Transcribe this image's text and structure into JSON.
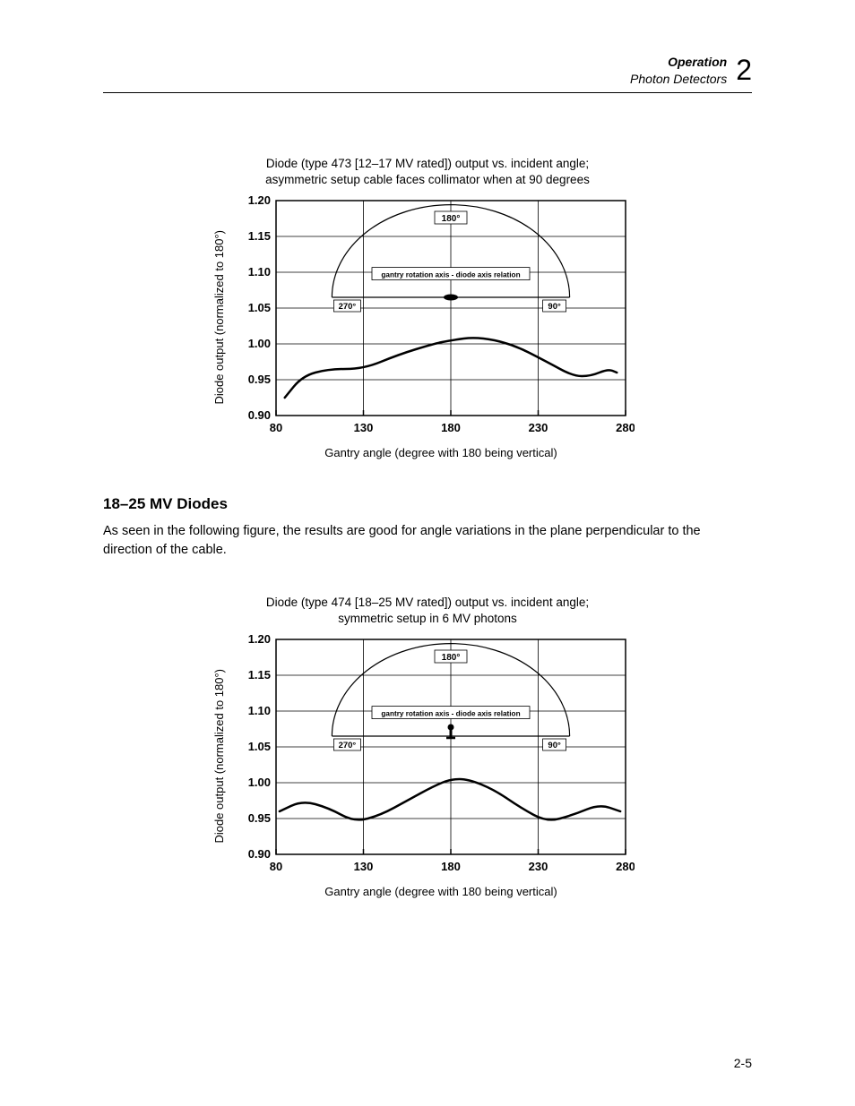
{
  "header": {
    "line1": "Operation",
    "line2": "Photon Detectors",
    "chapter_num": "2"
  },
  "chart1": {
    "type": "line",
    "title_line1": "Diode (type 473 [12–17 MV rated]) output vs. incident angle;",
    "title_line2": "asymmetric setup cable faces collimator when at 90 degrees",
    "ylabel": "Diode output (normalized to 180°)",
    "xlabel": "Gantry angle (degree with 180 being vertical)",
    "xlim": [
      80,
      280
    ],
    "ylim": [
      0.9,
      1.2
    ],
    "xticks": [
      80,
      130,
      180,
      230,
      280
    ],
    "yticks": [
      "0.90",
      "0.95",
      "1.00",
      "1.05",
      "1.10",
      "1.15",
      "1.20"
    ],
    "tick_fontsize": 13,
    "tick_fontweight": "bold",
    "axis_color": "#000000",
    "grid_color": "#000000",
    "background_color": "#ffffff",
    "line_color": "#000000",
    "line_width": 2.5,
    "arc_color": "#000000",
    "arc_width": 1.2,
    "box_border": "#000000",
    "annotation_box_text": "gantry rotation axis - diode axis relation",
    "annotation_labels": {
      "top": "180°",
      "left": "270°",
      "right": "90°"
    },
    "data_points": [
      {
        "x": 85,
        "y": 0.925
      },
      {
        "x": 95,
        "y": 0.955
      },
      {
        "x": 110,
        "y": 0.965
      },
      {
        "x": 130,
        "y": 0.965
      },
      {
        "x": 150,
        "y": 0.985
      },
      {
        "x": 170,
        "y": 1.0
      },
      {
        "x": 180,
        "y": 1.005
      },
      {
        "x": 195,
        "y": 1.01
      },
      {
        "x": 215,
        "y": 1.0
      },
      {
        "x": 235,
        "y": 0.975
      },
      {
        "x": 250,
        "y": 0.955
      },
      {
        "x": 260,
        "y": 0.955
      },
      {
        "x": 270,
        "y": 0.965
      },
      {
        "x": 275,
        "y": 0.96
      }
    ]
  },
  "section": {
    "heading": "18–25 MV Diodes",
    "body": "As seen in the following figure, the results are good for angle variations in the plane perpendicular to the direction of the cable."
  },
  "chart2": {
    "type": "line",
    "title_line1": "Diode (type 474 [18–25 MV rated]) output vs. incident angle;",
    "title_line2": "symmetric setup in 6 MV photons",
    "ylabel": "Diode output (normalized to 180°)",
    "xlabel": "Gantry angle (degree with 180 being vertical)",
    "xlim": [
      80,
      280
    ],
    "ylim": [
      0.9,
      1.2
    ],
    "xticks": [
      80,
      130,
      180,
      230,
      280
    ],
    "yticks": [
      "0.90",
      "0.95",
      "1.00",
      "1.05",
      "1.10",
      "1.15",
      "1.20"
    ],
    "tick_fontsize": 13,
    "tick_fontweight": "bold",
    "axis_color": "#000000",
    "grid_color": "#000000",
    "background_color": "#ffffff",
    "line_color": "#000000",
    "line_width": 2.5,
    "arc_color": "#000000",
    "arc_width": 1.2,
    "box_border": "#000000",
    "annotation_box_text": "gantry rotation axis - diode axis relation",
    "annotation_labels": {
      "top": "180°",
      "left": "270°",
      "right": "90°"
    },
    "data_points": [
      {
        "x": 82,
        "y": 0.96
      },
      {
        "x": 95,
        "y": 0.975
      },
      {
        "x": 110,
        "y": 0.965
      },
      {
        "x": 125,
        "y": 0.945
      },
      {
        "x": 140,
        "y": 0.955
      },
      {
        "x": 155,
        "y": 0.975
      },
      {
        "x": 170,
        "y": 0.995
      },
      {
        "x": 180,
        "y": 1.005
      },
      {
        "x": 190,
        "y": 1.005
      },
      {
        "x": 205,
        "y": 0.99
      },
      {
        "x": 220,
        "y": 0.965
      },
      {
        "x": 235,
        "y": 0.945
      },
      {
        "x": 250,
        "y": 0.955
      },
      {
        "x": 265,
        "y": 0.97
      },
      {
        "x": 277,
        "y": 0.96
      }
    ]
  },
  "page_num": "2-5"
}
